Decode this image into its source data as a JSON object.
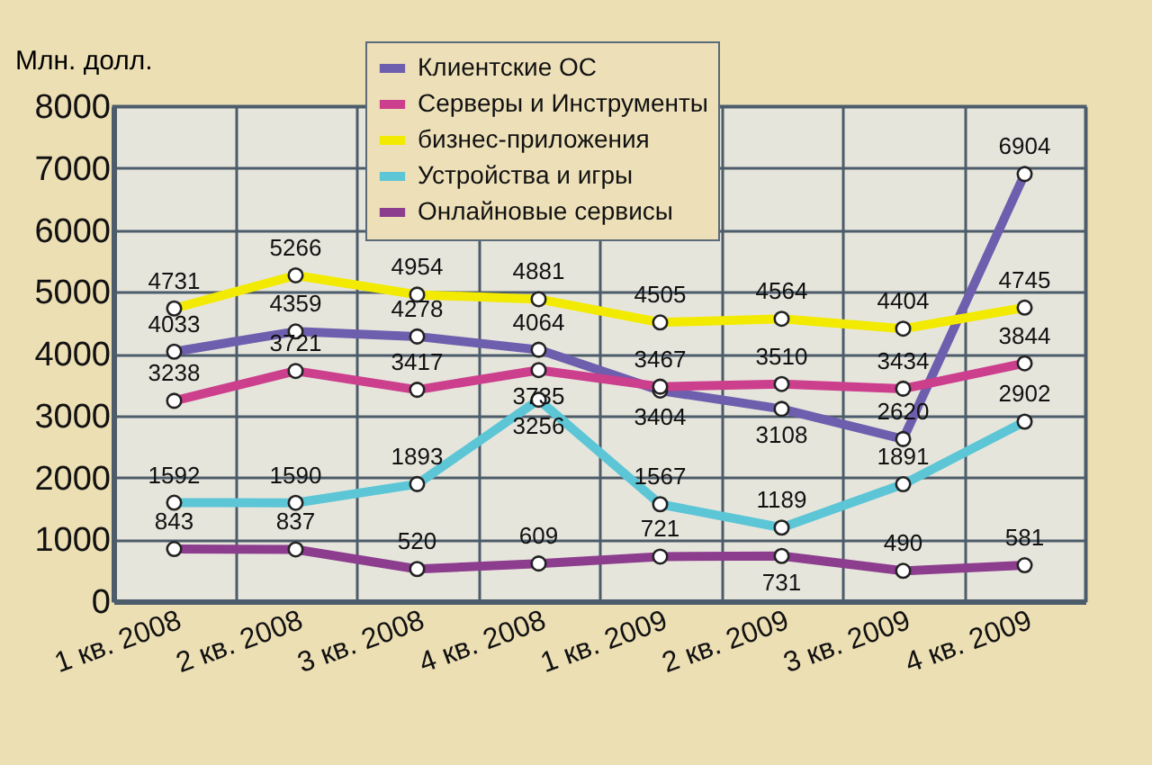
{
  "chart_data": {
    "type": "line",
    "ylabel": "Млн. долл.",
    "categories": [
      "1 кв. 2008",
      "2 кв. 2008",
      "3 кв. 2008",
      "4 кв. 2008",
      "1 кв. 2009",
      "2 кв. 2009",
      "3 кв. 2009",
      "4 кв. 2009"
    ],
    "series": [
      {
        "name": "Клиентские ОС",
        "color": "#6e5fae",
        "values": [
          4033,
          4359,
          4278,
          4064,
          3404,
          3108,
          2620,
          6904
        ]
      },
      {
        "name": "Серверы и Инструменты",
        "color": "#cc3f8c",
        "values": [
          3238,
          3721,
          3417,
          3735,
          3467,
          3510,
          3434,
          3844
        ]
      },
      {
        "name": "бизнес-приложения",
        "color": "#f2ea00",
        "values": [
          4731,
          5266,
          4954,
          4881,
          4505,
          4564,
          4404,
          4745
        ]
      },
      {
        "name": "Устройства и игры",
        "color": "#5cc6d6",
        "values": [
          1592,
          1590,
          1893,
          3256,
          1567,
          1189,
          1891,
          2902
        ]
      },
      {
        "name": "Онлайновые сервисы",
        "color": "#8c3d8e",
        "values": [
          843,
          837,
          520,
          609,
          721,
          731,
          490,
          581
        ]
      }
    ],
    "ylim": [
      0,
      8000
    ],
    "yticks": [
      0,
      1000,
      2000,
      3000,
      4000,
      5000,
      6000,
      7000,
      8000
    ],
    "grid": true,
    "legend": "top",
    "marker": "circle",
    "data_labels": true
  }
}
